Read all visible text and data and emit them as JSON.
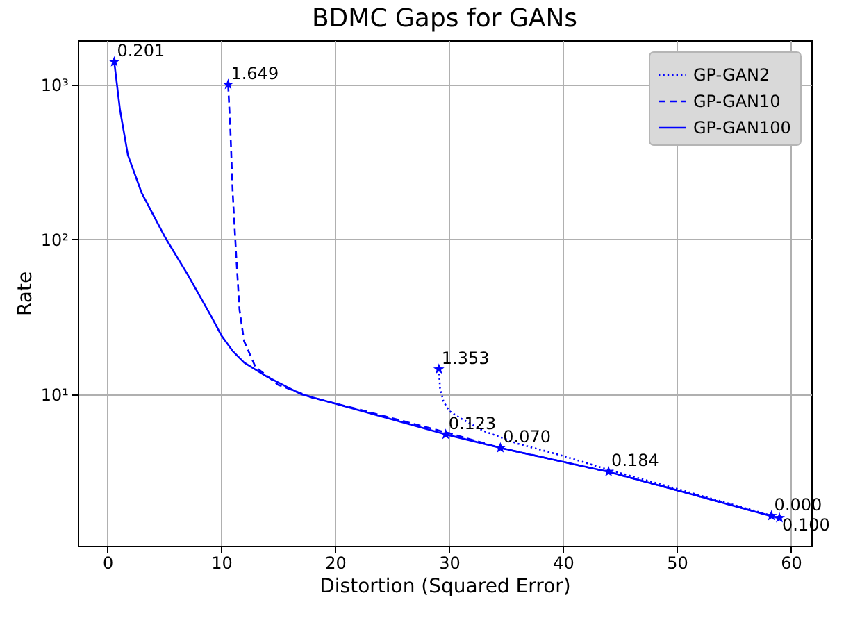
{
  "chart_data": {
    "type": "line",
    "title": "BDMC Gaps for GANs",
    "xlabel": "Distortion (Squared Error)",
    "ylabel": "Rate",
    "log": "y",
    "grid": true,
    "legend": "top right",
    "xlim": [
      -2.6,
      61.8
    ],
    "xticks": [
      0,
      10,
      20,
      30,
      40,
      50,
      60
    ],
    "ylim": [
      1.05,
      1930
    ],
    "yticks": [
      {
        "value": 10,
        "label": "10¹"
      },
      {
        "value": 100,
        "label": "10²"
      },
      {
        "value": 1000,
        "label": "10³"
      }
    ],
    "series": [
      {
        "name": "GP-GAN2",
        "color": "#0000ff",
        "line_style": "dotted",
        "x": [
          29.1,
          29.2,
          29.5,
          30,
          31,
          33,
          36,
          40,
          44,
          50,
          58.5
        ],
        "values": [
          14.5,
          11,
          9,
          7.8,
          7,
          5.8,
          4.8,
          4,
          3.25,
          2.45,
          1.63
        ]
      },
      {
        "name": "GP-GAN10",
        "color": "#0000ff",
        "line_style": "dashed",
        "x": [
          10.6,
          10.8,
          11.0,
          11.3,
          11.6,
          12.0,
          13,
          15,
          18,
          22,
          30,
          34.5,
          44,
          50,
          58.5
        ],
        "values": [
          1000,
          500,
          200,
          80,
          35,
          22,
          15,
          11.5,
          9.5,
          8,
          5.6,
          4.5,
          3.15,
          2.4,
          1.62
        ]
      },
      {
        "name": "GP-GAN100",
        "color": "#0000ff",
        "line_style": "solid",
        "x": [
          0.6,
          1.1,
          1.8,
          3,
          5.1,
          7,
          9.1,
          10,
          11,
          12,
          14,
          17,
          20,
          24,
          29.7,
          34.5,
          44,
          50,
          59
        ],
        "values": [
          1400,
          690,
          350,
          200,
          102,
          60,
          32,
          24,
          19,
          16,
          13,
          10,
          8.7,
          7.2,
          5.5,
          4.5,
          3.15,
          2.4,
          1.58
        ]
      },
      {
        "type": "scatter",
        "marker": "star",
        "color": "#0000ff",
        "x": [
          0.6,
          10.6,
          29.1,
          29.7,
          34.5,
          44,
          58.3,
          59.0
        ],
        "values": [
          1400,
          1000,
          14.5,
          5.5,
          4.5,
          3.16,
          1.64,
          1.59
        ]
      }
    ],
    "annotations": [
      {
        "text": "0.201",
        "x": 0.6,
        "y": 1400
      },
      {
        "text": "1.649",
        "x": 10.6,
        "y": 1000
      },
      {
        "text": "1.353",
        "x": 29.1,
        "y": 14.5
      },
      {
        "text": "0.123",
        "x": 29.7,
        "y": 5.5
      },
      {
        "text": "0.070",
        "x": 34.5,
        "y": 4.5
      },
      {
        "text": "0.184",
        "x": 44,
        "y": 3.16
      },
      {
        "text": "0.000",
        "x": 58.3,
        "y": 1.64
      },
      {
        "text": "0.100",
        "x": 59.0,
        "y": 1.59
      }
    ]
  }
}
